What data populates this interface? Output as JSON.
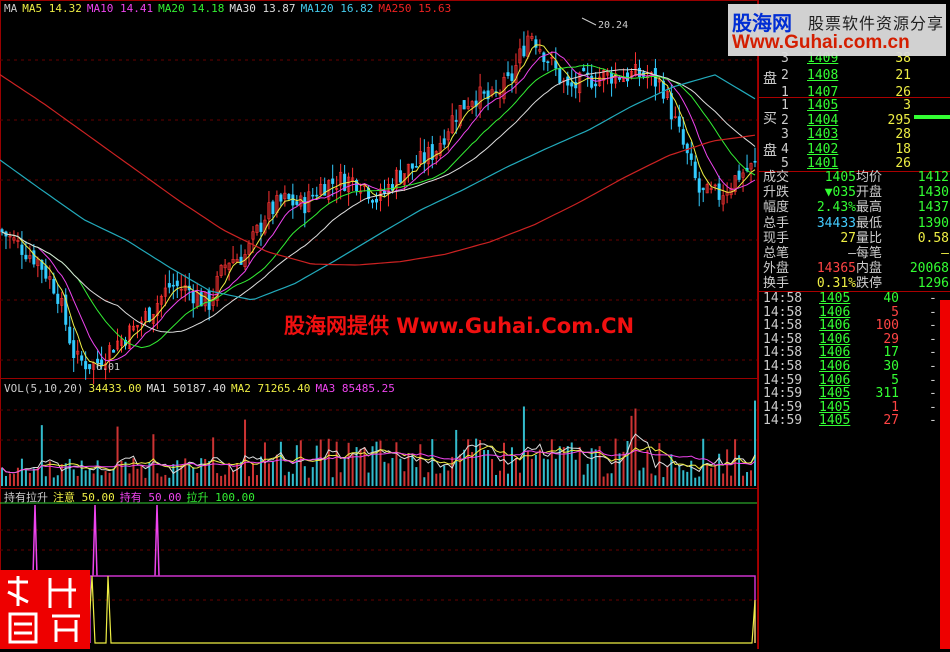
{
  "ma_legend": [
    {
      "label": "MA",
      "color": "#cccccc"
    },
    {
      "label": "MA5 14.32",
      "color": "#eeee44"
    },
    {
      "label": "MA10 14.41",
      "color": "#ee44ee"
    },
    {
      "label": "MA20 14.18",
      "color": "#33ee33"
    },
    {
      "label": "MA30 13.87",
      "color": "#dddddd"
    },
    {
      "label": "MA120 16.82",
      "color": "#44ccee"
    },
    {
      "label": "MA250 15.63",
      "color": "#ee2222"
    }
  ],
  "vol_legend": [
    {
      "label": "VOL(5,10,20)",
      "color": "#cccccc"
    },
    {
      "label": "34433.00",
      "color": "#eeee44"
    },
    {
      "label": "MA1 50187.40",
      "color": "#dddddd"
    },
    {
      "label": "MA2 71265.40",
      "color": "#eeee44"
    },
    {
      "label": "MA3 85485.25",
      "color": "#ee44ee"
    }
  ],
  "ind_legend": [
    {
      "label": "持有拉升",
      "color": "#cccccc"
    },
    {
      "label": "注意 50.00",
      "color": "#eeee44"
    },
    {
      "label": "持有 50.00",
      "color": "#ee44ee"
    },
    {
      "label": "拉升 100.00",
      "color": "#33ee33"
    }
  ],
  "chart_data": {
    "type": "candlestick",
    "high_label": "20.24",
    "low_label": "6.01",
    "price_range": [
      6.01,
      20.24
    ],
    "close_path": [
      11.78,
      11.17,
      10.57,
      9.35,
      6.5,
      6.3,
      7.11,
      7.72,
      8.53,
      9.55,
      9.35,
      8.74,
      10.57,
      10.77,
      12.39,
      13.0,
      12.8,
      13.61,
      13.82,
      13.82,
      13.0,
      14.02,
      14.43,
      15.04,
      16.46,
      17.27,
      17.07,
      17.89,
      19.91,
      18.69,
      17.48,
      17.89,
      18.09,
      18.09,
      18.09,
      17.68,
      15.44,
      13.21,
      13.21,
      14.02,
      14.43
    ],
    "ma120_path": [
      14.63,
      13.4,
      12.2,
      11.38,
      10.3,
      9.3,
      8.94,
      9.6,
      10.57,
      11.6,
      12.6,
      13.41,
      14.3,
      15.1,
      15.85,
      16.8,
      17.6,
      18.09,
      17.07
    ],
    "ma250_path": [
      18.1,
      16.9,
      15.6,
      14.3,
      13.0,
      11.8,
      10.9,
      10.4,
      10.36,
      10.5,
      10.8,
      11.3,
      12.0,
      12.9,
      13.9,
      14.8,
      15.4,
      15.65
    ]
  },
  "logo": {
    "cn": "股海网",
    "slogan": "股票软件资源分享",
    "url": "Www.Guhai.com.cn"
  },
  "watermark": "股海网提供 Www.Guhai.Com.CN",
  "seal_text": "逍遥非常",
  "orderbook": {
    "sell_label": "盘",
    "buy_label_1": "买",
    "buy_label_2": "盘",
    "sell": [
      {
        "n": "3",
        "p": "1409",
        "v": "38"
      },
      {
        "n": "2",
        "p": "1408",
        "v": "21"
      },
      {
        "n": "1",
        "p": "1407",
        "v": "26"
      }
    ],
    "buy": [
      {
        "n": "1",
        "p": "1405",
        "v": "3"
      },
      {
        "n": "2",
        "p": "1404",
        "v": "295"
      },
      {
        "n": "3",
        "p": "1403",
        "v": "28"
      },
      {
        "n": "4",
        "p": "1402",
        "v": "18"
      },
      {
        "n": "5",
        "p": "1401",
        "v": "26"
      }
    ]
  },
  "stats": [
    {
      "l1": "成交",
      "v1": "1405",
      "c1": "g",
      "l2": "均价",
      "v2": "1412",
      "c2": "g"
    },
    {
      "l1": "升跌",
      "v1": "▼035",
      "c1": "g",
      "l2": "开盘",
      "v2": "1430",
      "c2": "g"
    },
    {
      "l1": "幅度",
      "v1": "2.43%",
      "c1": "g",
      "l2": "最高",
      "v2": "1437",
      "c2": "g"
    },
    {
      "l1": "总手",
      "v1": "34433",
      "c1": "c",
      "l2": "最低",
      "v2": "1390",
      "c2": "g"
    },
    {
      "l1": "现手",
      "v1": "27",
      "c1": "y",
      "l2": "量比",
      "v2": "0.58",
      "c2": "y"
    },
    {
      "l1": "总笔",
      "v1": "—",
      "c1": "w",
      "l2": "每笔",
      "v2": "—",
      "c2": "y"
    },
    {
      "l1": "外盘",
      "v1": "14365",
      "c1": "r",
      "l2": "内盘",
      "v2": "20068",
      "c2": "g"
    },
    {
      "l1": "换手",
      "v1": "0.31%",
      "c1": "y",
      "l2": "跌停",
      "v2": "1296",
      "c2": "g"
    }
  ],
  "ticks": [
    {
      "t": "14:58",
      "p": "1405",
      "v": "40",
      "c": "g"
    },
    {
      "t": "14:58",
      "p": "1406",
      "v": "5",
      "c": "r"
    },
    {
      "t": "14:58",
      "p": "1406",
      "v": "100",
      "c": "r"
    },
    {
      "t": "14:58",
      "p": "1406",
      "v": "29",
      "c": "r"
    },
    {
      "t": "14:58",
      "p": "1406",
      "v": "17",
      "c": "g"
    },
    {
      "t": "14:58",
      "p": "1406",
      "v": "30",
      "c": "g"
    },
    {
      "t": "14:59",
      "p": "1406",
      "v": "5",
      "c": "g"
    },
    {
      "t": "14:59",
      "p": "1405",
      "v": "311",
      "c": "g"
    },
    {
      "t": "14:59",
      "p": "1405",
      "v": "1",
      "c": "r"
    },
    {
      "t": "14:59",
      "p": "1405",
      "v": "27",
      "c": "r"
    }
  ]
}
